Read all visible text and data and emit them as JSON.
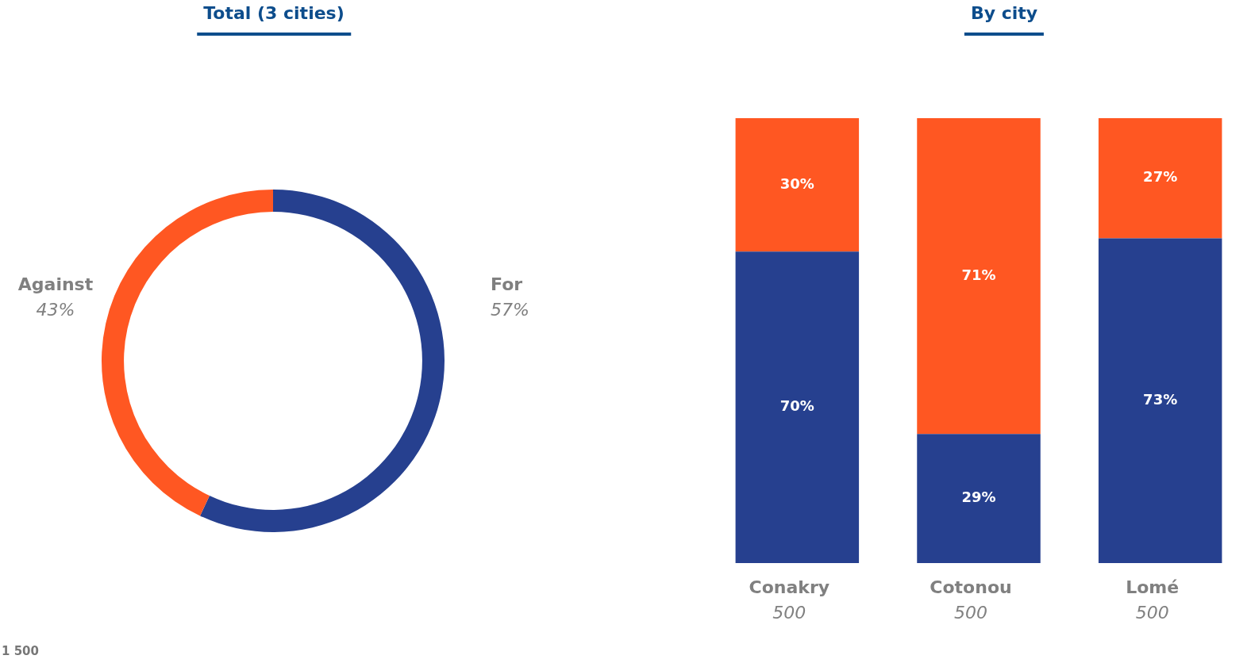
{
  "chart_data": [
    {
      "type": "donut",
      "title": "Total (3 cities)",
      "categories": [
        "For",
        "Against"
      ],
      "values": [
        57,
        43
      ],
      "colors": [
        "#26408f",
        "#ff5722"
      ],
      "value_labels": [
        "57%",
        "43%"
      ],
      "annotations": [
        "1 500"
      ]
    },
    {
      "type": "bar",
      "title": "By city",
      "categories": [
        "Conakry\n500",
        "Cotonou\n500",
        "Lomé\n500"
      ],
      "stacked": true,
      "ylim": [
        0,
        100
      ],
      "tick_labels": "x",
      "data_labels": true,
      "series": [
        {
          "color": "#26408f",
          "values": [
            70,
            29,
            73
          ],
          "value_labels": [
            "70%",
            "29%",
            "73%"
          ]
        },
        {
          "color": "#ff5722",
          "values": [
            30,
            71,
            27
          ],
          "value_labels": [
            "30%",
            "71%",
            "27%"
          ]
        }
      ]
    }
  ]
}
